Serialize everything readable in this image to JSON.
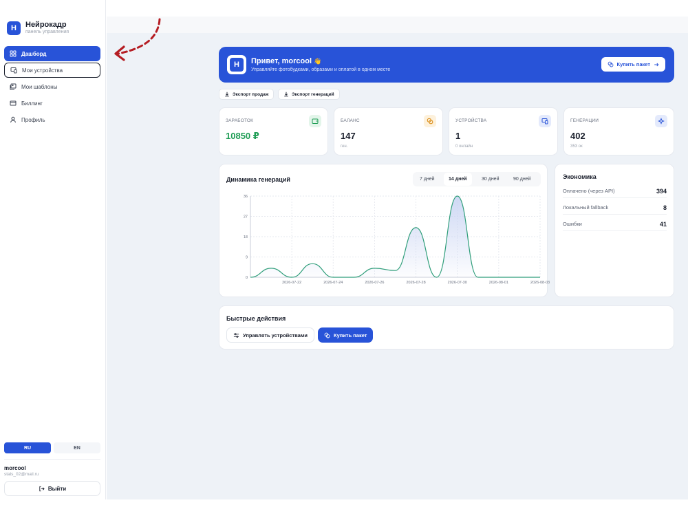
{
  "brand": {
    "name": "Нейрокадр",
    "subtitle": "панель управления",
    "logo_letter": "Н"
  },
  "sidebar": {
    "items": [
      {
        "label": "Дашборд",
        "icon": "grid-icon"
      },
      {
        "label": "Мои устройства",
        "icon": "devices-icon"
      },
      {
        "label": "Мои шаблоны",
        "icon": "image-icon"
      },
      {
        "label": "Биллинг",
        "icon": "card-icon"
      },
      {
        "label": "Профиль",
        "icon": "user-icon"
      }
    ],
    "languages": [
      "RU",
      "EN"
    ],
    "active_language": "RU",
    "user": {
      "name": "morcool",
      "email": "stals_02@mail.ru"
    },
    "logout_label": "Выйти"
  },
  "hero": {
    "title": "Привет, morcool",
    "wave": "👋",
    "subtitle": "Управляйте фотобудками, образами и оплатой в одном месте",
    "button_label": "Купить пакет",
    "color": "#2853d8"
  },
  "exports": {
    "sales": "Экспорт продаж",
    "generations": "Экспорт генераций"
  },
  "stats": [
    {
      "label": "ЗАРАБОТОК",
      "value": "10850 ₽",
      "sub": "",
      "icon": "wallet-icon",
      "value_color": "#1f9d55"
    },
    {
      "label": "БАЛАНС",
      "value": "147",
      "sub": "ген.",
      "icon": "coins-icon",
      "value_color": "#1a1f2c"
    },
    {
      "label": "УСТРОЙСТВА",
      "value": "1",
      "sub": "0 онлайн",
      "icon": "devices-icon",
      "value_color": "#1a1f2c"
    },
    {
      "label": "ГЕНЕРАЦИИ",
      "value": "402",
      "sub": "353 ок",
      "icon": "sparkle-icon",
      "value_color": "#1a1f2c"
    }
  ],
  "chart_card": {
    "title": "Динамика генераций",
    "ranges": [
      "7 дней",
      "14 дней",
      "30 дней",
      "90 дней"
    ],
    "selected_range": "14 дней"
  },
  "chart_data": {
    "type": "area",
    "x": [
      "2026-07-20",
      "2026-07-21",
      "2026-07-22",
      "2026-07-23",
      "2026-07-24",
      "2026-07-25",
      "2026-07-26",
      "2026-07-27",
      "2026-07-28",
      "2026-07-29",
      "2026-07-30",
      "2026-07-31",
      "2026-08-01",
      "2026-08-02",
      "2026-08-03"
    ],
    "x_tick_labels": [
      "2026-07-22",
      "2026-07-24",
      "2026-07-26",
      "2026-07-28",
      "2026-07-30",
      "2026-08-01",
      "2026-08-03"
    ],
    "series": [
      {
        "values": [
          0,
          4,
          0,
          6,
          0,
          0,
          4,
          3,
          22,
          0,
          36,
          0,
          0,
          0,
          0
        ]
      }
    ],
    "y_ticks": [
      0,
      9,
      18,
      27,
      36
    ],
    "ylim": [
      0,
      36
    ],
    "grid": true,
    "line_color": "#2f9e7a",
    "fill_color": "#c9d4f3"
  },
  "economy": {
    "title": "Экономика",
    "rows": [
      {
        "label": "Оплачено (через API)",
        "value": "394"
      },
      {
        "label": "Локальный fallback",
        "value": "8"
      },
      {
        "label": "Ошибки",
        "value": "41"
      }
    ]
  },
  "quick_actions": {
    "title": "Быстрые действия",
    "manage_devices": "Управлять устройствами",
    "buy_package": "Купить пакет"
  }
}
